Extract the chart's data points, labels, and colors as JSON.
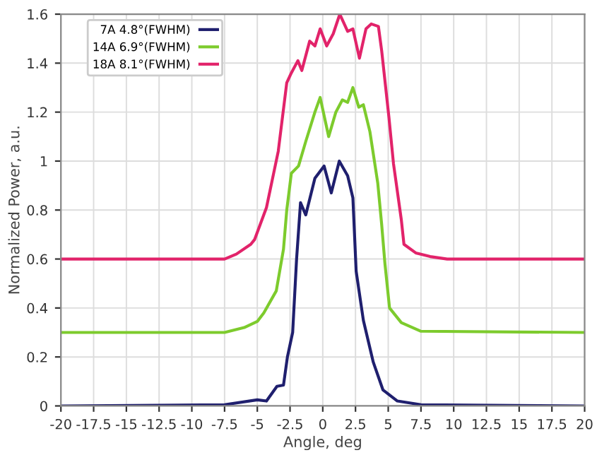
{
  "chart_data": {
    "type": "line",
    "xlabel": "Angle, deg",
    "ylabel": "Normalized Power, a.u.",
    "xlim": [
      -20,
      20
    ],
    "xticks": [
      -20,
      -17.5,
      -15,
      -12.5,
      -10,
      -7.5,
      -5,
      -2.5,
      0,
      2.5,
      5,
      7.5,
      10,
      12.5,
      15,
      17.5,
      20
    ],
    "ylim": [
      0,
      1.6
    ],
    "yticks": [
      0,
      0.2,
      0.4,
      0.6,
      0.8,
      1,
      1.2,
      1.4,
      1.6
    ],
    "grid": true,
    "legend": "top left",
    "series": [
      {
        "name": "7A 4.8°(FWHM)",
        "color": "#1f1f6e",
        "x": [
          -20,
          -7.5,
          -5,
          -4.3,
          -3.5,
          -3.0,
          -2.7,
          -2.3,
          -2.0,
          -1.7,
          -1.3,
          -0.6,
          0.1,
          0.65,
          1.26,
          1.9,
          2.3,
          2.55,
          3.1,
          3.85,
          4.6,
          5.7,
          7.5,
          20
        ],
        "values": [
          0,
          0.005,
          0.025,
          0.02,
          0.08,
          0.085,
          0.2,
          0.3,
          0.6,
          0.83,
          0.78,
          0.93,
          0.98,
          0.87,
          1.0,
          0.94,
          0.85,
          0.55,
          0.35,
          0.18,
          0.065,
          0.02,
          0.005,
          0
        ]
      },
      {
        "name": "14A 6.9°(FWHM)",
        "color": "#7dcb2d",
        "x": [
          -20,
          -7.5,
          -6,
          -5,
          -4.5,
          -3.55,
          -3.0,
          -2.75,
          -2.4,
          -1.85,
          -1.3,
          -0.6,
          -0.2,
          0.45,
          1.0,
          1.5,
          1.9,
          2.3,
          2.75,
          3.1,
          3.6,
          4.2,
          4.5,
          4.75,
          5.1,
          6.0,
          7.5,
          20
        ],
        "values": [
          0.3,
          0.3,
          0.32,
          0.345,
          0.38,
          0.47,
          0.64,
          0.8,
          0.95,
          0.98,
          1.08,
          1.2,
          1.26,
          1.1,
          1.2,
          1.25,
          1.24,
          1.3,
          1.22,
          1.23,
          1.12,
          0.91,
          0.74,
          0.58,
          0.4,
          0.34,
          0.305,
          0.3
        ]
      },
      {
        "name": "18A 8.1°(FWHM)",
        "color": "#e2236a",
        "x": [
          -20,
          -7.5,
          -6.6,
          -5.5,
          -5.2,
          -4.3,
          -3.4,
          -2.75,
          -2.4,
          -1.9,
          -1.6,
          -1.0,
          -0.6,
          -0.2,
          0.3,
          0.8,
          1.3,
          1.9,
          2.3,
          2.8,
          3.3,
          3.7,
          4.25,
          4.5,
          5.05,
          5.4,
          6.0,
          6.2,
          7.1,
          8.2,
          9.5,
          20
        ],
        "values": [
          0.6,
          0.6,
          0.62,
          0.66,
          0.68,
          0.81,
          1.04,
          1.32,
          1.36,
          1.41,
          1.37,
          1.49,
          1.47,
          1.54,
          1.47,
          1.52,
          1.6,
          1.53,
          1.54,
          1.42,
          1.54,
          1.56,
          1.55,
          1.45,
          1.18,
          0.99,
          0.76,
          0.66,
          0.625,
          0.61,
          0.6,
          0.6
        ]
      }
    ]
  }
}
